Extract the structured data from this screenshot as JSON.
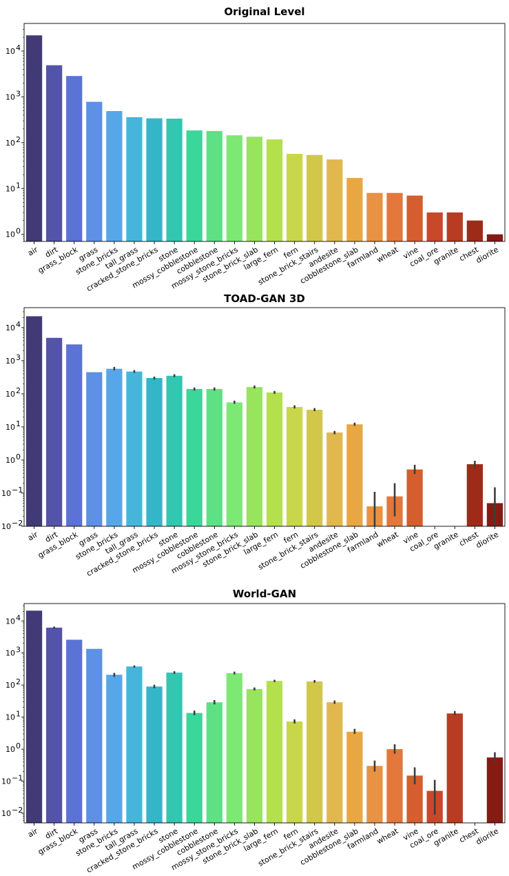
{
  "chart_data": [
    {
      "type": "bar",
      "title": "Original Level",
      "yscale": "log",
      "ylim": [
        0.7,
        40000
      ],
      "yticks": [
        {
          "v": 1,
          "e": "0"
        },
        {
          "v": 10,
          "e": "1"
        },
        {
          "v": 100,
          "e": "2"
        },
        {
          "v": 1000,
          "e": "3"
        },
        {
          "v": 10000,
          "e": "4"
        }
      ],
      "xlabel": "",
      "ylabel": "",
      "categories": [
        "air",
        "dirt",
        "grass_block",
        "grass",
        "stone_bricks",
        "tall_grass",
        "cracked_stone_bricks",
        "stone",
        "mossy_cobblestone",
        "cobblestone",
        "mossy_stone_bricks",
        "stone_brick_slab",
        "large_fern",
        "fern",
        "stone_brick_stairs",
        "andesite",
        "cobblestone_slab",
        "farmland",
        "wheat",
        "vine",
        "coal_ore",
        "granite",
        "chest",
        "diorite"
      ],
      "values": [
        22000,
        4900,
        2850,
        780,
        490,
        360,
        340,
        335,
        185,
        180,
        145,
        135,
        118,
        57,
        54,
        43,
        17,
        8,
        8,
        7,
        3,
        3,
        2,
        1
      ],
      "errors": [
        null,
        null,
        null,
        null,
        null,
        null,
        null,
        null,
        null,
        null,
        null,
        null,
        null,
        null,
        null,
        null,
        null,
        null,
        null,
        null,
        null,
        null,
        null,
        null
      ]
    },
    {
      "type": "bar",
      "title": "TOAD-GAN 3D",
      "yscale": "log",
      "ylim": [
        0.01,
        40000
      ],
      "yticks": [
        {
          "v": 0.01,
          "e": "−2"
        },
        {
          "v": 0.1,
          "e": "−1"
        },
        {
          "v": 1,
          "e": "0"
        },
        {
          "v": 10,
          "e": "1"
        },
        {
          "v": 100,
          "e": "2"
        },
        {
          "v": 1000,
          "e": "3"
        },
        {
          "v": 10000,
          "e": "4"
        }
      ],
      "xlabel": "",
      "ylabel": "",
      "categories": [
        "air",
        "dirt",
        "grass_block",
        "grass",
        "stone_bricks",
        "tall_grass",
        "cracked_stone_bricks",
        "stone",
        "mossy_cobblestone",
        "cobblestone",
        "mossy_stone_bricks",
        "stone_brick_slab",
        "large_fern",
        "fern",
        "stone_brick_stairs",
        "andesite",
        "cobblestone_slab",
        "farmland",
        "wheat",
        "vine",
        "coal_ore",
        "granite",
        "chest",
        "diorite"
      ],
      "values": [
        22000,
        4900,
        3100,
        450,
        570,
        470,
        300,
        350,
        140,
        140,
        55,
        160,
        110,
        40,
        33,
        6.8,
        12,
        0.04,
        0.08,
        0.52,
        null,
        null,
        0.75,
        0.05
      ],
      "errors": [
        null,
        null,
        null,
        null,
        [
          510,
          650
        ],
        [
          430,
          520
        ],
        [
          270,
          330
        ],
        [
          320,
          390
        ],
        [
          125,
          155
        ],
        [
          125,
          155
        ],
        [
          50,
          62
        ],
        [
          145,
          178
        ],
        [
          100,
          122
        ],
        [
          36,
          45
        ],
        [
          30,
          37
        ],
        [
          6,
          7.6
        ],
        [
          10.8,
          13.5
        ],
        [
          0.007,
          0.11
        ],
        [
          0.02,
          0.2
        ],
        [
          0.38,
          0.72
        ],
        null,
        null,
        [
          0.58,
          0.95
        ],
        [
          0.008,
          0.15
        ]
      ]
    },
    {
      "type": "bar",
      "title": "World-GAN",
      "yscale": "log",
      "ylim": [
        0.005,
        35000
      ],
      "yticks": [
        {
          "v": 0.01,
          "e": "−2"
        },
        {
          "v": 0.1,
          "e": "−1"
        },
        {
          "v": 1,
          "e": "0"
        },
        {
          "v": 10,
          "e": "1"
        },
        {
          "v": 100,
          "e": "2"
        },
        {
          "v": 1000,
          "e": "3"
        },
        {
          "v": 10000,
          "e": "4"
        }
      ],
      "xlabel": "",
      "ylabel": "",
      "categories": [
        "air",
        "dirt",
        "grass_block",
        "grass",
        "stone_bricks",
        "tall_grass",
        "cracked_stone_bricks",
        "stone",
        "mossy_cobblestone",
        "cobblestone",
        "mossy_stone_bricks",
        "stone_brick_slab",
        "large_fern",
        "fern",
        "stone_brick_stairs",
        "andesite",
        "cobblestone_slab",
        "farmland",
        "wheat",
        "vine",
        "coal_ore",
        "granite",
        "chest",
        "diorite"
      ],
      "values": [
        21000,
        6200,
        2600,
        1350,
        210,
        380,
        90,
        245,
        13.5,
        29,
        235,
        75,
        135,
        7.3,
        130,
        29,
        3.5,
        0.3,
        1.0,
        0.15,
        0.05,
        13,
        null,
        0.55
      ],
      "errors": [
        null,
        [
          5700,
          6700
        ],
        null,
        null,
        [
          180,
          240
        ],
        [
          350,
          410
        ],
        [
          80,
          102
        ],
        [
          225,
          270
        ],
        [
          11.5,
          16
        ],
        [
          25,
          34
        ],
        [
          215,
          262
        ],
        [
          68,
          84
        ],
        [
          124,
          146
        ],
        [
          6.3,
          8.5
        ],
        [
          119,
          143
        ],
        [
          26,
          33
        ],
        [
          3.0,
          4.3
        ],
        [
          0.2,
          0.44
        ],
        [
          0.72,
          1.42
        ],
        [
          0.08,
          0.27
        ],
        [
          0.009,
          0.11
        ],
        [
          11.5,
          15.5
        ],
        null,
        [
          0.4,
          0.8
        ]
      ]
    }
  ],
  "palette": [
    "#423a76",
    "#5354a8",
    "#5b72d6",
    "#5e90e3",
    "#56a7ea",
    "#45b6da",
    "#33b6c8",
    "#33c6b0",
    "#3bd69a",
    "#5ee085",
    "#7ee875",
    "#98e45d",
    "#b4e04e",
    "#c8d64a",
    "#d1c74b",
    "#e0b84e",
    "#e9a744",
    "#e89243",
    "#e2783c",
    "#d45e2d",
    "#c8482a",
    "#b73c22",
    "#9d2b18",
    "#851c14"
  ],
  "errorbar_color": "#3d3d3d"
}
